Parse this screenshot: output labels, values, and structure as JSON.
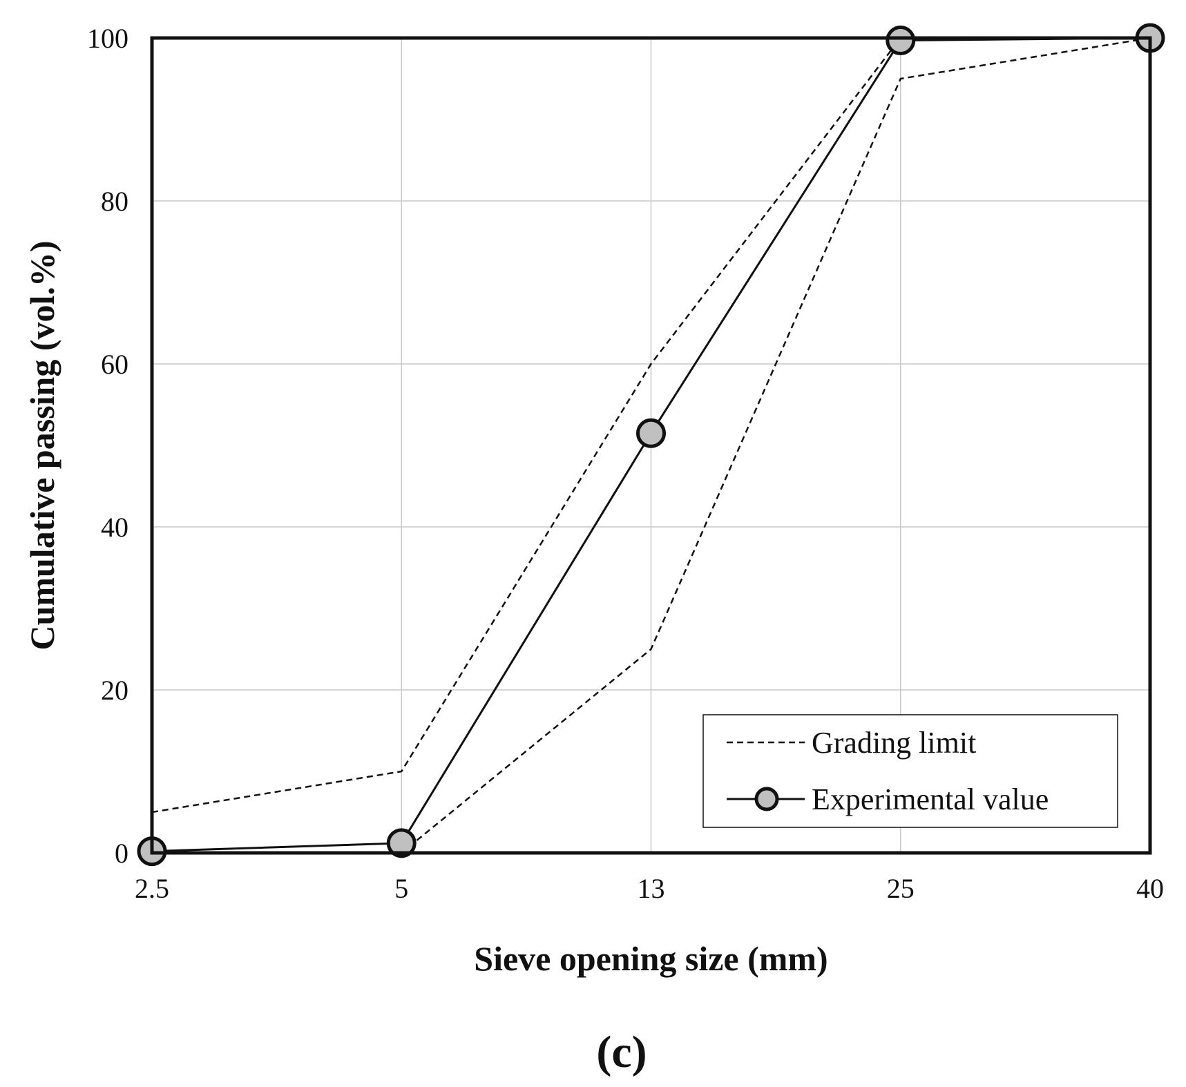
{
  "chart_data": {
    "type": "line",
    "title": "",
    "xlabel": "Sieve opening size (mm)",
    "ylabel": "Cumulative passing (vol.%)",
    "panel_label": "(c)",
    "categories": [
      "2.5",
      "5",
      "13",
      "25",
      "40"
    ],
    "ylim": [
      0,
      100
    ],
    "yticks": [
      "0",
      "20",
      "40",
      "60",
      "80",
      "100"
    ],
    "grid": true,
    "legend_position": "bottom-right",
    "legend": {
      "grading_limit": "Grading limit",
      "experimental": "Experimental value"
    },
    "series": [
      {
        "name": "Grading limit (upper)",
        "style": "dashed",
        "values": [
          5,
          10,
          60,
          100,
          100
        ]
      },
      {
        "name": "Grading limit (lower)",
        "style": "dashed",
        "values": [
          0,
          0,
          25,
          95,
          100
        ]
      },
      {
        "name": "Experimental value",
        "style": "solid-marker",
        "values": [
          0.2,
          1.2,
          51.5,
          99.7,
          100
        ]
      }
    ],
    "colors": {
      "line": "#111111",
      "grid": "#c8c8c8",
      "marker_fill": "#c0c0c0"
    }
  }
}
